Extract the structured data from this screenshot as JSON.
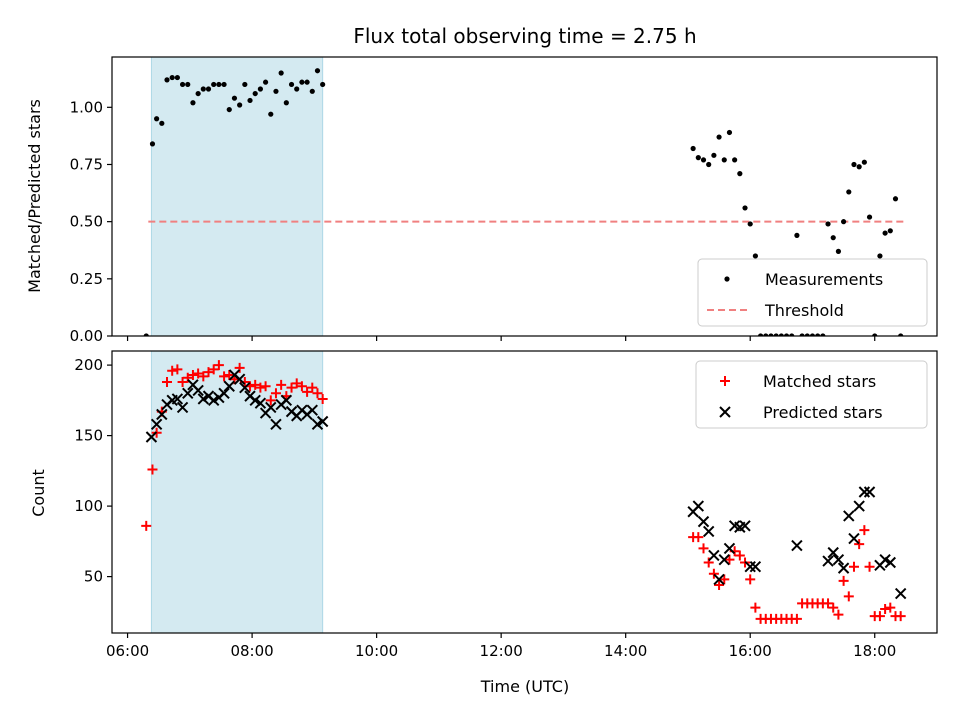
{
  "chart_data": [
    {
      "type": "scatter",
      "title": "Flux total observing time = 2.75 h",
      "xlabel": "",
      "ylabel": "Matched/Predicted stars",
      "xlim": [
        "05:45",
        "19:00"
      ],
      "ylim": [
        0,
        1.22
      ],
      "yticks": [
        "0.00",
        "0.25",
        "0.50",
        "0.75",
        "1.00"
      ],
      "yticks_values": [
        0,
        0.25,
        0.5,
        0.75,
        1.0
      ],
      "highlight_span": [
        "06:23",
        "09:08"
      ],
      "highlight_color": "#d4eaf1",
      "legend_position": "lower-right",
      "threshold": {
        "name": "Threshold",
        "value": 0.5,
        "x_start": "06:20",
        "x_end": "18:30",
        "color": "#f08080"
      },
      "series": [
        {
          "name": "Measurements",
          "color": "#000000",
          "x": [
            "06:18",
            "06:24",
            "06:28",
            "06:33",
            "06:38",
            "06:43",
            "06:48",
            "06:53",
            "06:58",
            "07:03",
            "07:08",
            "07:13",
            "07:18",
            "07:23",
            "07:28",
            "07:33",
            "07:38",
            "07:43",
            "07:48",
            "07:53",
            "07:58",
            "08:03",
            "08:08",
            "08:13",
            "08:18",
            "08:23",
            "08:28",
            "08:33",
            "08:38",
            "08:43",
            "08:48",
            "08:53",
            "08:58",
            "09:03",
            "09:08",
            "15:05",
            "15:10",
            "15:15",
            "15:20",
            "15:25",
            "15:30",
            "15:35",
            "15:40",
            "15:45",
            "15:50",
            "15:55",
            "16:00",
            "16:05",
            "16:10",
            "16:15",
            "16:20",
            "16:25",
            "16:30",
            "16:35",
            "16:40",
            "16:45",
            "16:50",
            "16:55",
            "17:00",
            "17:05",
            "17:10",
            "17:15",
            "17:20",
            "17:25",
            "17:30",
            "17:35",
            "17:40",
            "17:45",
            "17:50",
            "17:55",
            "18:00",
            "18:05",
            "18:10",
            "18:15",
            "18:20",
            "18:25"
          ],
          "y": [
            0.0,
            0.84,
            0.95,
            0.93,
            1.12,
            1.13,
            1.13,
            1.1,
            1.1,
            1.02,
            1.06,
            1.08,
            1.08,
            1.1,
            1.1,
            1.1,
            0.99,
            1.04,
            1.01,
            1.1,
            1.03,
            1.06,
            1.08,
            1.11,
            0.97,
            1.07,
            1.15,
            1.02,
            1.1,
            1.08,
            1.11,
            1.11,
            1.07,
            1.16,
            1.1,
            0.82,
            0.78,
            0.77,
            0.75,
            0.79,
            0.87,
            0.77,
            0.89,
            0.77,
            0.71,
            0.56,
            0.49,
            0.35,
            0.0,
            0.0,
            0.0,
            0.0,
            0.0,
            0.0,
            0.0,
            0.44,
            0.0,
            0.0,
            0.0,
            0.0,
            0.0,
            0.49,
            0.43,
            0.37,
            0.5,
            0.63,
            0.75,
            0.74,
            0.76,
            0.52,
            0.0,
            0.35,
            0.45,
            0.46,
            0.6,
            0.0
          ]
        }
      ]
    },
    {
      "type": "scatter",
      "title": "",
      "xlabel": "Time (UTC)",
      "ylabel": "Count",
      "xlim": [
        "05:45",
        "19:00"
      ],
      "ylim": [
        10,
        210
      ],
      "yticks": [
        "50",
        "100",
        "150",
        "200"
      ],
      "yticks_values": [
        50,
        100,
        150,
        200
      ],
      "xticks": [
        "06:00",
        "08:00",
        "10:00",
        "12:00",
        "14:00",
        "16:00",
        "18:00"
      ],
      "highlight_span": [
        "06:23",
        "09:08"
      ],
      "highlight_color": "#d4eaf1",
      "legend_position": "upper-right",
      "series": [
        {
          "name": "Matched stars",
          "marker": "plus",
          "color": "#ff0000",
          "x": [
            "06:18",
            "06:24",
            "06:28",
            "06:33",
            "06:38",
            "06:43",
            "06:48",
            "06:53",
            "06:58",
            "07:03",
            "07:08",
            "07:13",
            "07:18",
            "07:23",
            "07:28",
            "07:33",
            "07:38",
            "07:43",
            "07:48",
            "07:53",
            "07:58",
            "08:03",
            "08:08",
            "08:13",
            "08:18",
            "08:23",
            "08:28",
            "08:33",
            "08:38",
            "08:43",
            "08:48",
            "08:53",
            "08:58",
            "09:03",
            "09:08",
            "15:05",
            "15:10",
            "15:15",
            "15:20",
            "15:25",
            "15:30",
            "15:35",
            "15:40",
            "15:45",
            "15:50",
            "15:55",
            "16:00",
            "16:05",
            "16:10",
            "16:15",
            "16:20",
            "16:25",
            "16:30",
            "16:35",
            "16:40",
            "16:45",
            "16:50",
            "16:55",
            "17:00",
            "17:05",
            "17:10",
            "17:15",
            "17:20",
            "17:25",
            "17:30",
            "17:35",
            "17:40",
            "17:45",
            "17:50",
            "17:55",
            "18:00",
            "18:05",
            "18:10",
            "18:15",
            "18:20",
            "18:25"
          ],
          "y": [
            86,
            126,
            152,
            167,
            188,
            196,
            197,
            188,
            191,
            193,
            194,
            192,
            195,
            197,
            200,
            192,
            193,
            190,
            198,
            188,
            185,
            186,
            184,
            185,
            175,
            180,
            186,
            178,
            184,
            187,
            185,
            181,
            184,
            180,
            176,
            78,
            78,
            70,
            60,
            52,
            44,
            48,
            62,
            68,
            65,
            60,
            48,
            28,
            20,
            20,
            20,
            20,
            20,
            20,
            20,
            20,
            31,
            31,
            31,
            31,
            31,
            31,
            28,
            23,
            47,
            36,
            57,
            73,
            83,
            57,
            22,
            22,
            27,
            28,
            22,
            22
          ]
        },
        {
          "name": "Predicted stars",
          "marker": "x",
          "color": "#000000",
          "x": [
            "06:23",
            "06:28",
            "06:33",
            "06:38",
            "06:43",
            "06:48",
            "06:53",
            "06:58",
            "07:03",
            "07:08",
            "07:13",
            "07:18",
            "07:23",
            "07:28",
            "07:33",
            "07:38",
            "07:43",
            "07:48",
            "07:53",
            "07:58",
            "08:03",
            "08:08",
            "08:13",
            "08:18",
            "08:23",
            "08:28",
            "08:33",
            "08:38",
            "08:43",
            "08:48",
            "08:53",
            "08:58",
            "09:03",
            "09:08",
            "15:05",
            "15:10",
            "15:15",
            "15:20",
            "15:25",
            "15:30",
            "15:35",
            "15:40",
            "15:45",
            "15:50",
            "15:55",
            "16:00",
            "16:05",
            "16:45",
            "17:15",
            "17:20",
            "17:25",
            "17:30",
            "17:35",
            "17:40",
            "17:45",
            "17:50",
            "17:55",
            "18:05",
            "18:10",
            "18:15",
            "18:25"
          ],
          "y": [
            149,
            158,
            165,
            172,
            175,
            176,
            170,
            180,
            186,
            182,
            176,
            178,
            175,
            177,
            180,
            185,
            193,
            190,
            184,
            178,
            175,
            173,
            166,
            170,
            158,
            172,
            175,
            167,
            164,
            168,
            165,
            168,
            158,
            160,
            96,
            100,
            89,
            82,
            65,
            48,
            62,
            70,
            86,
            85,
            86,
            57,
            57,
            72,
            61,
            67,
            62,
            56,
            93,
            77,
            100,
            110,
            110,
            58,
            62,
            60,
            38
          ]
        }
      ]
    }
  ]
}
